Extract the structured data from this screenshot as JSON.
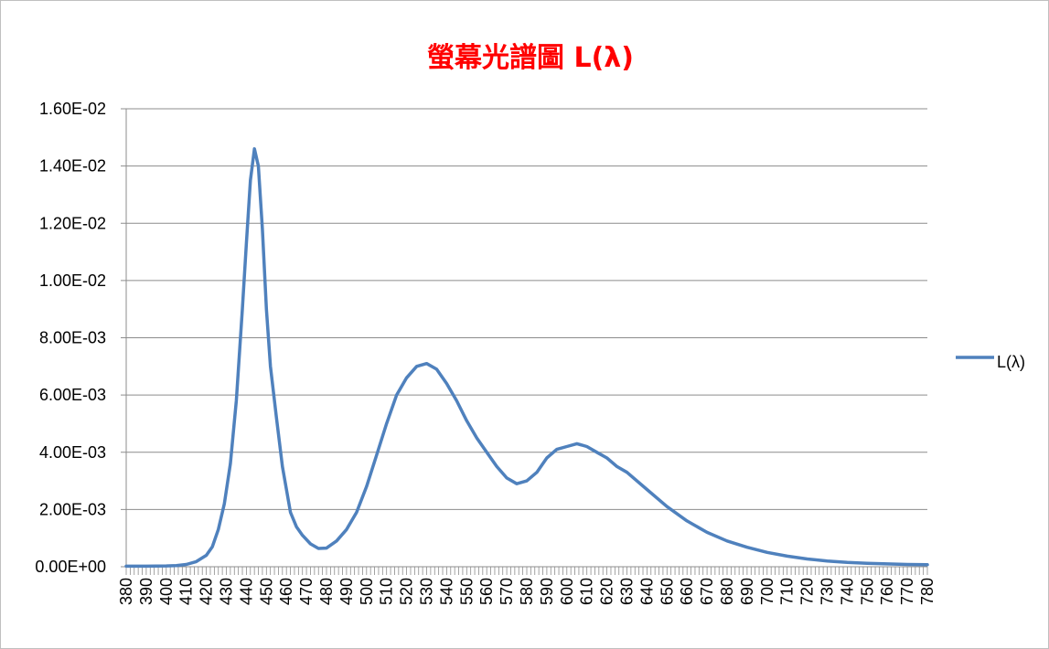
{
  "chart_data": {
    "type": "line",
    "title": "螢幕光譜圖 L(λ)",
    "xlabel": "",
    "ylabel": "",
    "ylim": [
      0,
      0.016
    ],
    "y_ticks": [
      "0.00E+00",
      "2.00E-03",
      "4.00E-03",
      "6.00E-03",
      "8.00E-03",
      "1.00E-02",
      "1.20E-02",
      "1.40E-02",
      "1.60E-02"
    ],
    "x_ticks": [
      "380",
      "390",
      "400",
      "410",
      "420",
      "430",
      "440",
      "450",
      "460",
      "470",
      "480",
      "490",
      "500",
      "510",
      "520",
      "530",
      "540",
      "550",
      "560",
      "570",
      "580",
      "590",
      "600",
      "610",
      "620",
      "630",
      "640",
      "650",
      "660",
      "670",
      "680",
      "690",
      "700",
      "710",
      "720",
      "730",
      "740",
      "750",
      "760",
      "770",
      "780"
    ],
    "xlim": [
      380,
      780
    ],
    "grid": "horizontal",
    "legend_position": "right",
    "series": [
      {
        "name": "L(λ)",
        "color": "#4f81bd",
        "x": [
          380,
          390,
          400,
          405,
          410,
          415,
          420,
          423,
          426,
          429,
          432,
          435,
          438,
          440,
          442,
          444,
          446,
          448,
          450,
          452,
          455,
          458,
          462,
          465,
          468,
          472,
          476,
          480,
          485,
          490,
          495,
          500,
          505,
          510,
          515,
          520,
          525,
          530,
          535,
          540,
          545,
          550,
          555,
          560,
          565,
          570,
          575,
          580,
          585,
          590,
          595,
          600,
          605,
          610,
          615,
          620,
          625,
          630,
          640,
          650,
          660,
          670,
          680,
          690,
          700,
          710,
          720,
          730,
          740,
          750,
          760,
          770,
          780
        ],
        "y": [
          2e-05,
          2e-05,
          3e-05,
          4e-05,
          8e-05,
          0.00018,
          0.0004,
          0.0007,
          0.0013,
          0.0022,
          0.0036,
          0.0058,
          0.009,
          0.0113,
          0.0135,
          0.0146,
          0.014,
          0.0118,
          0.009,
          0.007,
          0.0052,
          0.0035,
          0.0019,
          0.0014,
          0.0011,
          0.0008,
          0.00064,
          0.00065,
          0.0009,
          0.0013,
          0.0019,
          0.0028,
          0.0039,
          0.005,
          0.006,
          0.0066,
          0.007,
          0.0071,
          0.0069,
          0.0064,
          0.0058,
          0.0051,
          0.0045,
          0.004,
          0.0035,
          0.0031,
          0.0029,
          0.003,
          0.0033,
          0.0038,
          0.0041,
          0.0042,
          0.0043,
          0.0042,
          0.004,
          0.0038,
          0.0035,
          0.0033,
          0.0027,
          0.0021,
          0.0016,
          0.0012,
          0.0009,
          0.00068,
          0.0005,
          0.00037,
          0.00027,
          0.0002,
          0.00015,
          0.00012,
          0.0001,
          8e-05,
          7e-05
        ]
      }
    ]
  }
}
